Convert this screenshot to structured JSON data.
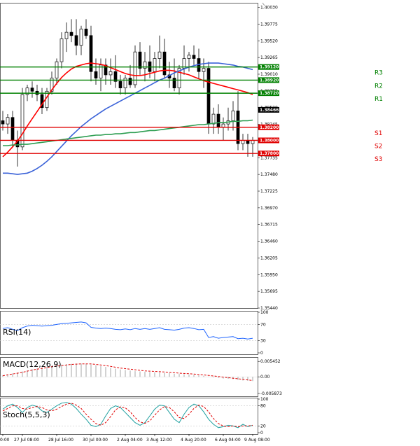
{
  "chart_data": {
    "type": "candlestick",
    "title": "",
    "main": {
      "ylim": [
        1.3544,
        1.401
      ],
      "y_ticks": [
        "1.40030",
        "1.39775",
        "1.39520",
        "1.39265",
        "1.39010",
        "1.38755",
        "1.38500",
        "1.38245",
        "1.37990",
        "1.37735",
        "1.37480",
        "1.37225",
        "1.36970",
        "1.36715",
        "1.36460",
        "1.36205",
        "1.35950",
        "1.35695",
        "1.35440"
      ],
      "current_price": {
        "label": "1.38466",
        "value": 1.38466
      },
      "levels": [
        {
          "name": "R3",
          "value": 1.3912,
          "label": "1.39120",
          "color": "#008000"
        },
        {
          "name": "R2",
          "value": 1.3892,
          "label": "1.38920",
          "color": "#008000"
        },
        {
          "name": "R1",
          "value": 1.3872,
          "label": "1.38720",
          "color": "#008000"
        },
        {
          "name": "S1",
          "value": 1.382,
          "label": "1.38200",
          "color": "#e00000"
        },
        {
          "name": "S2",
          "value": 1.38,
          "label": "1.38000",
          "color": "#e00000"
        },
        {
          "name": "S3",
          "value": 1.378,
          "label": "1.37800",
          "color": "#e00000"
        }
      ],
      "candles": [
        [
          1.383,
          1.3845,
          1.3815,
          1.3825
        ],
        [
          1.3825,
          1.384,
          1.381,
          1.3835
        ],
        [
          1.3835,
          1.3845,
          1.379,
          1.38
        ],
        [
          1.38,
          1.3815,
          1.376,
          1.379
        ],
        [
          1.379,
          1.388,
          1.3785,
          1.387
        ],
        [
          1.387,
          1.3885,
          1.386,
          1.388
        ],
        [
          1.388,
          1.389,
          1.3865,
          1.3875
        ],
        [
          1.3875,
          1.3885,
          1.386,
          1.387
        ],
        [
          1.387,
          1.388,
          1.384,
          1.385
        ],
        [
          1.385,
          1.388,
          1.3845,
          1.3875
        ],
        [
          1.3875,
          1.3905,
          1.387,
          1.3895
        ],
        [
          1.3895,
          1.3925,
          1.3885,
          1.392
        ],
        [
          1.392,
          1.3965,
          1.391,
          1.3955
        ],
        [
          1.3955,
          1.398,
          1.3935,
          1.3965
        ],
        [
          1.3965,
          1.3985,
          1.395,
          1.396
        ],
        [
          1.396,
          1.3985,
          1.393,
          1.3945
        ],
        [
          1.3945,
          1.3975,
          1.393,
          1.397
        ],
        [
          1.397,
          1.3985,
          1.3955,
          1.396
        ],
        [
          1.396,
          1.3975,
          1.389,
          1.3905
        ],
        [
          1.3905,
          1.3925,
          1.3885,
          1.3895
        ],
        [
          1.3895,
          1.3925,
          1.3875,
          1.3915
        ],
        [
          1.3915,
          1.3925,
          1.3885,
          1.39
        ],
        [
          1.39,
          1.3925,
          1.3885,
          1.3905
        ],
        [
          1.3905,
          1.393,
          1.388,
          1.389
        ],
        [
          1.389,
          1.39,
          1.387,
          1.388
        ],
        [
          1.388,
          1.39,
          1.387,
          1.3895
        ],
        [
          1.3895,
          1.3915,
          1.388,
          1.3885
        ],
        [
          1.3885,
          1.3945,
          1.388,
          1.3935
        ],
        [
          1.3935,
          1.395,
          1.39,
          1.391
        ],
        [
          1.391,
          1.3935,
          1.389,
          1.392
        ],
        [
          1.392,
          1.3945,
          1.3895,
          1.3905
        ],
        [
          1.3905,
          1.3935,
          1.389,
          1.3925
        ],
        [
          1.3925,
          1.396,
          1.391,
          1.3935
        ],
        [
          1.3935,
          1.3955,
          1.3895,
          1.39
        ],
        [
          1.39,
          1.392,
          1.388,
          1.3895
        ],
        [
          1.3895,
          1.3925,
          1.3875,
          1.388
        ],
        [
          1.388,
          1.3915,
          1.387,
          1.391
        ],
        [
          1.391,
          1.3945,
          1.39,
          1.3925
        ],
        [
          1.3925,
          1.3935,
          1.3905,
          1.393
        ],
        [
          1.393,
          1.3945,
          1.3915,
          1.3925
        ],
        [
          1.3925,
          1.394,
          1.3895,
          1.3905
        ],
        [
          1.3905,
          1.3925,
          1.388,
          1.391
        ],
        [
          1.391,
          1.392,
          1.381,
          1.3825
        ],
        [
          1.3825,
          1.385,
          1.381,
          1.384
        ],
        [
          1.384,
          1.3855,
          1.381,
          1.382
        ],
        [
          1.382,
          1.3835,
          1.38,
          1.3825
        ],
        [
          1.3825,
          1.385,
          1.3815,
          1.383
        ],
        [
          1.383,
          1.386,
          1.3815,
          1.3845
        ],
        [
          1.3845,
          1.3875,
          1.3785,
          1.3795
        ],
        [
          1.3795,
          1.381,
          1.3785,
          1.38
        ],
        [
          1.38,
          1.381,
          1.3775,
          1.3795
        ],
        [
          1.3795,
          1.3805,
          1.3775,
          1.38
        ]
      ],
      "moving_averages": [
        {
          "name": "Fast MA",
          "color": "#ff0000",
          "values": [
            1.3775,
            1.3782,
            1.379,
            1.3799,
            1.381,
            1.3822,
            1.3833,
            1.3844,
            1.3855,
            1.3866,
            1.3877,
            1.3887,
            1.3896,
            1.3903,
            1.3909,
            1.3913,
            1.3915,
            1.3917,
            1.3918,
            1.3917,
            1.3916,
            1.3914,
            1.3911,
            1.3908,
            1.3905,
            1.3902,
            1.39,
            1.3899,
            1.3899,
            1.39,
            1.3902,
            1.3904,
            1.3906,
            1.3907,
            1.3907,
            1.3906,
            1.3904,
            1.3902,
            1.39,
            1.3897,
            1.3894,
            1.3891,
            1.3889,
            1.3887,
            1.3885,
            1.3883,
            1.3881,
            1.3879,
            1.3877,
            1.3875,
            1.3873,
            1.387
          ]
        },
        {
          "name": "Mid MA",
          "color": "#3a62d8",
          "values": [
            1.375,
            1.375,
            1.3749,
            1.3748,
            1.3749,
            1.375,
            1.3753,
            1.3757,
            1.3762,
            1.3768,
            1.3775,
            1.3783,
            1.3791,
            1.3799,
            1.3807,
            1.3814,
            1.3821,
            1.3827,
            1.3833,
            1.3838,
            1.3843,
            1.3848,
            1.3852,
            1.3856,
            1.386,
            1.3864,
            1.3868,
            1.3872,
            1.3876,
            1.388,
            1.3884,
            1.3888,
            1.3892,
            1.3895,
            1.3899,
            1.3903,
            1.3906,
            1.3909,
            1.3912,
            1.3914,
            1.3916,
            1.3917,
            1.3918,
            1.3918,
            1.3918,
            1.3917,
            1.3916,
            1.3915,
            1.3913,
            1.3912,
            1.391,
            1.3908
          ]
        },
        {
          "name": "Slow MA",
          "color": "#2e9e52",
          "values": [
            1.3792,
            1.3792,
            1.3793,
            1.3793,
            1.3794,
            1.3794,
            1.3795,
            1.3796,
            1.3797,
            1.3798,
            1.3799,
            1.38,
            1.3801,
            1.3802,
            1.3803,
            1.3804,
            1.3805,
            1.3806,
            1.3807,
            1.3808,
            1.3808,
            1.3809,
            1.3809,
            1.381,
            1.381,
            1.3811,
            1.3812,
            1.3812,
            1.3813,
            1.3814,
            1.3815,
            1.3815,
            1.3816,
            1.3817,
            1.3818,
            1.3819,
            1.382,
            1.3821,
            1.3822,
            1.3823,
            1.3824,
            1.3824,
            1.3825,
            1.3826,
            1.3827,
            1.3827,
            1.3828,
            1.3829,
            1.3829,
            1.383,
            1.383,
            1.3831
          ]
        }
      ]
    },
    "rsi": {
      "label": "RSI(14)",
      "ylim": [
        0,
        100
      ],
      "ticks": [
        "100",
        "70",
        "30",
        "0"
      ],
      "levels": [
        70,
        30
      ],
      "values": [
        60,
        62,
        58,
        55,
        62,
        66,
        68,
        67,
        66,
        67,
        68,
        70,
        72,
        73,
        74,
        75,
        76,
        74,
        63,
        61,
        60,
        61,
        60,
        58,
        57,
        59,
        57,
        60,
        58,
        60,
        58,
        60,
        62,
        58,
        57,
        56,
        58,
        61,
        62,
        60,
        57,
        58,
        38,
        40,
        36,
        38,
        39,
        40,
        35,
        36,
        34,
        36
      ]
    },
    "macd": {
      "label": "MACD(12,26,9)",
      "ylim": [
        -0.0064,
        0.0065
      ],
      "ticks": [
        "0.005452",
        "0.00",
        "-0.005873"
      ],
      "histogram": [
        0.0006,
        0.0009,
        0.0012,
        0.0015,
        0.0019,
        0.0023,
        0.0027,
        0.003,
        0.0033,
        0.0036,
        0.0038,
        0.0041,
        0.0043,
        0.0045,
        0.0046,
        0.0047,
        0.0047,
        0.0046,
        0.0044,
        0.0041,
        0.0038,
        0.0035,
        0.0032,
        0.0029,
        0.0026,
        0.0024,
        0.0022,
        0.002,
        0.0019,
        0.0018,
        0.0017,
        0.0016,
        0.0015,
        0.0014,
        0.0013,
        0.0011,
        0.001,
        0.0009,
        0.0008,
        0.0007,
        0.0005,
        0.0004,
        0.0001,
        -0.0002,
        -0.0004,
        -0.0006,
        -0.0007,
        -0.0008,
        -0.0011,
        -0.0013,
        -0.0014,
        -0.0015
      ],
      "signal": [
        0.0004,
        0.0007,
        0.001,
        0.0013,
        0.0016,
        0.002,
        0.0024,
        0.0027,
        0.003,
        0.0033,
        0.0036,
        0.0038,
        0.004,
        0.0042,
        0.0044,
        0.0045,
        0.0046,
        0.0046,
        0.0046,
        0.0044,
        0.0042,
        0.004,
        0.0037,
        0.0034,
        0.0031,
        0.0029,
        0.0027,
        0.0025,
        0.0023,
        0.0021,
        0.002,
        0.0019,
        0.0018,
        0.0017,
        0.0016,
        0.0015,
        0.0013,
        0.0012,
        0.0011,
        0.001,
        0.0008,
        0.0007,
        0.0005,
        0.0003,
        0.0001,
        -0.0001,
        -0.0003,
        -0.0005,
        -0.0007,
        -0.0009,
        -0.0011,
        -0.0013
      ]
    },
    "stoch": {
      "label": "Stoch(5,5,3)",
      "ylim": [
        0,
        100
      ],
      "ticks": [
        "100",
        "80",
        "20",
        "0"
      ],
      "levels": [
        80,
        20
      ],
      "main": [
        70,
        80,
        85,
        75,
        60,
        75,
        82,
        78,
        65,
        60,
        70,
        80,
        88,
        90,
        85,
        72,
        55,
        40,
        22,
        18,
        25,
        50,
        72,
        80,
        75,
        60,
        45,
        30,
        22,
        30,
        50,
        70,
        82,
        80,
        60,
        40,
        30,
        55,
        75,
        85,
        80,
        62,
        40,
        25,
        15,
        18,
        22,
        20,
        15,
        25,
        18,
        22
      ],
      "signal": [
        65,
        72,
        80,
        80,
        72,
        70,
        75,
        78,
        75,
        68,
        65,
        70,
        78,
        85,
        88,
        82,
        72,
        55,
        40,
        27,
        22,
        30,
        48,
        68,
        77,
        74,
        62,
        45,
        32,
        28,
        35,
        52,
        68,
        78,
        75,
        62,
        45,
        42,
        55,
        72,
        82,
        78,
        62,
        42,
        27,
        20,
        18,
        20,
        18,
        20,
        20,
        22
      ]
    },
    "x_ticks": [
      "0:00",
      "27 Jul 08:00",
      "28 Jul 16:00",
      "30 Jul 00:00",
      "2 Aug 04:00",
      "3 Aug 12:00",
      "4 Aug 20:00",
      "6 Aug 04:00",
      "9 Aug 08:00"
    ],
    "x_tick_positions": [
      0,
      4,
      11,
      18,
      25,
      31,
      38,
      45,
      51
    ]
  }
}
